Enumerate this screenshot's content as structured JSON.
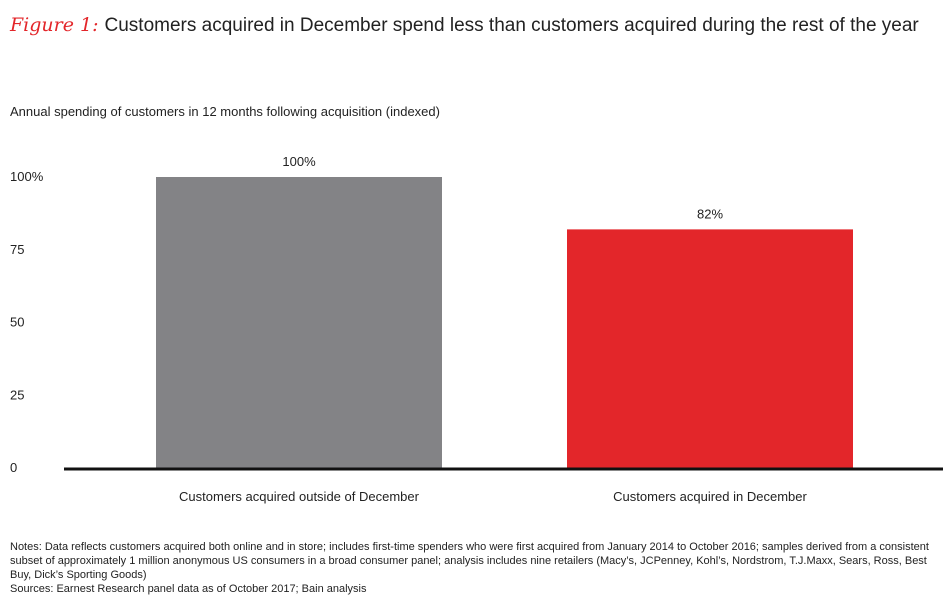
{
  "header": {
    "figure_label": "Figure 1:",
    "title": "Customers acquired in December spend less than customers acquired during the rest of the year"
  },
  "chart_data": {
    "type": "bar",
    "title": "Customers acquired in December spend less than customers acquired during the rest of the year",
    "subtitle": "Annual spending of customers in 12 months following acquisition (indexed)",
    "categories": [
      "Customers acquired outside of December",
      "Customers acquired in December"
    ],
    "values": [
      100,
      82
    ],
    "data_labels": [
      "100%",
      "82%"
    ],
    "colors": [
      "#838386",
      "#e3262a"
    ],
    "ylim": [
      0,
      100
    ],
    "yticks": [
      0,
      25,
      50,
      75,
      100
    ],
    "ytick_labels": [
      "0",
      "25",
      "50",
      "75",
      "100%"
    ],
    "grid": false,
    "legend": "none"
  },
  "footer": {
    "notes": "Notes: Data reflects customers acquired both online and in store; includes first-time spenders who were first acquired from January 2014 to October 2016; samples derived from a consistent subset of approximately 1 million anonymous US consumers in a broad consumer panel; analysis includes nine retailers (Macy’s, JCPenney, Kohl’s, Nordstrom, T.J.Maxx, Sears, Ross, Best Buy, Dick’s Sporting Goods)",
    "sources": "Sources: Earnest Research panel data as of October 2017; Bain analysis"
  }
}
